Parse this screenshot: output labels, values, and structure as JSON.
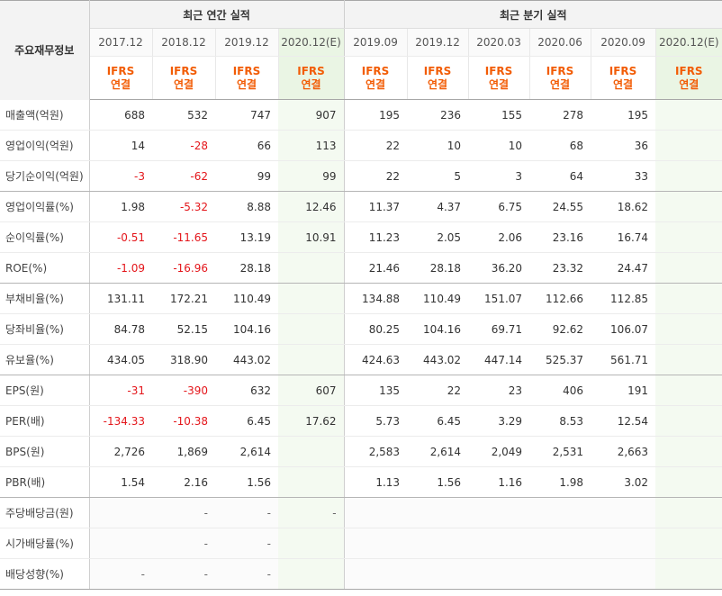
{
  "header": {
    "label_title": "주요재무정보",
    "annual_title": "최근 연간 실적",
    "quarter_title": "최근 분기 실적",
    "annual_periods": [
      "2017.12",
      "2018.12",
      "2019.12",
      "2020.12(E)"
    ],
    "quarter_periods": [
      "2019.09",
      "2019.12",
      "2020.03",
      "2020.06",
      "2020.09",
      "2020.12(E)"
    ],
    "ifrs_line1": "IFRS",
    "ifrs_line2": "연결"
  },
  "rows": [
    {
      "label": "매출액(억원)",
      "annual": [
        "688",
        "532",
        "747",
        "907"
      ],
      "quarter": [
        "195",
        "236",
        "155",
        "278",
        "195",
        ""
      ]
    },
    {
      "label": "영업이익(억원)",
      "annual": [
        "14",
        "-28",
        "66",
        "113"
      ],
      "quarter": [
        "22",
        "10",
        "10",
        "68",
        "36",
        ""
      ]
    },
    {
      "label": "당기순이익(억원)",
      "annual": [
        "-3",
        "-62",
        "99",
        "99"
      ],
      "quarter": [
        "22",
        "5",
        "3",
        "64",
        "33",
        ""
      ]
    },
    {
      "label": "영업이익률(%)",
      "annual": [
        "1.98",
        "-5.32",
        "8.88",
        "12.46"
      ],
      "quarter": [
        "11.37",
        "4.37",
        "6.75",
        "24.55",
        "18.62",
        ""
      ]
    },
    {
      "label": "순이익률(%)",
      "annual": [
        "-0.51",
        "-11.65",
        "13.19",
        "10.91"
      ],
      "quarter": [
        "11.23",
        "2.05",
        "2.06",
        "23.16",
        "16.74",
        ""
      ]
    },
    {
      "label": "ROE(%)",
      "annual": [
        "-1.09",
        "-16.96",
        "28.18",
        ""
      ],
      "quarter": [
        "21.46",
        "28.18",
        "36.20",
        "23.32",
        "24.47",
        ""
      ]
    },
    {
      "label": "부채비율(%)",
      "annual": [
        "131.11",
        "172.21",
        "110.49",
        ""
      ],
      "quarter": [
        "134.88",
        "110.49",
        "151.07",
        "112.66",
        "112.85",
        ""
      ]
    },
    {
      "label": "당좌비율(%)",
      "annual": [
        "84.78",
        "52.15",
        "104.16",
        ""
      ],
      "quarter": [
        "80.25",
        "104.16",
        "69.71",
        "92.62",
        "106.07",
        ""
      ]
    },
    {
      "label": "유보율(%)",
      "annual": [
        "434.05",
        "318.90",
        "443.02",
        ""
      ],
      "quarter": [
        "424.63",
        "443.02",
        "447.14",
        "525.37",
        "561.71",
        ""
      ]
    },
    {
      "label": "EPS(원)",
      "annual": [
        "-31",
        "-390",
        "632",
        "607"
      ],
      "quarter": [
        "135",
        "22",
        "23",
        "406",
        "191",
        ""
      ]
    },
    {
      "label": "PER(배)",
      "annual": [
        "-134.33",
        "-10.38",
        "6.45",
        "17.62"
      ],
      "quarter": [
        "5.73",
        "6.45",
        "3.29",
        "8.53",
        "12.54",
        ""
      ]
    },
    {
      "label": "BPS(원)",
      "annual": [
        "2,726",
        "1,869",
        "2,614",
        ""
      ],
      "quarter": [
        "2,583",
        "2,614",
        "2,049",
        "2,531",
        "2,663",
        ""
      ]
    },
    {
      "label": "PBR(배)",
      "annual": [
        "1.54",
        "2.16",
        "1.56",
        ""
      ],
      "quarter": [
        "1.13",
        "1.56",
        "1.16",
        "1.98",
        "3.02",
        ""
      ]
    },
    {
      "label": "주당배당금(원)",
      "annual": [
        "",
        "-",
        "-",
        "-"
      ],
      "quarter": [
        "",
        "",
        "",
        "",
        "",
        ""
      ]
    },
    {
      "label": "시가배당률(%)",
      "annual": [
        "",
        "-",
        "-",
        ""
      ],
      "quarter": [
        "",
        "",
        "",
        "",
        "",
        ""
      ]
    },
    {
      "label": "배당성향(%)",
      "annual": [
        "-",
        "-",
        "-",
        ""
      ],
      "quarter": [
        "",
        "",
        "",
        "",
        "",
        ""
      ]
    }
  ],
  "colors": {
    "negative": "#e4161b",
    "ifrs": "#f25c05",
    "estimate_bg": "#f4faf1"
  }
}
